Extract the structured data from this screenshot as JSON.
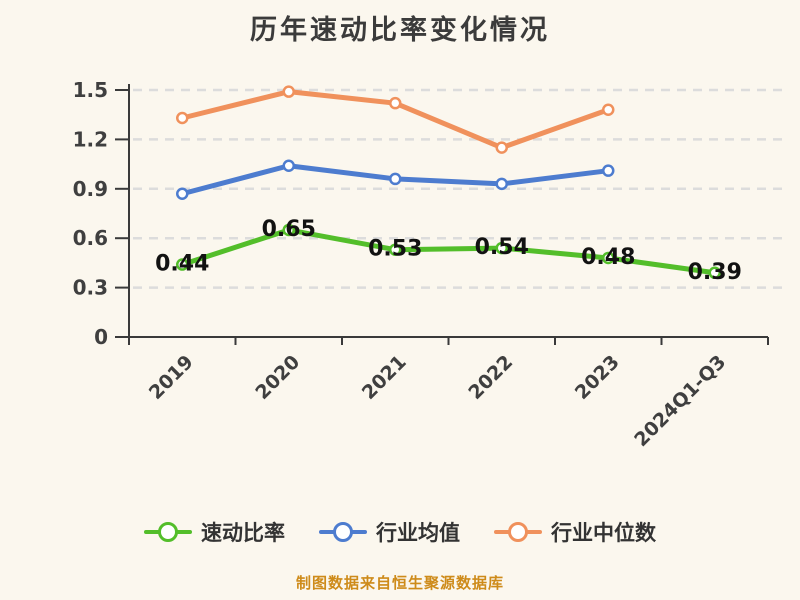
{
  "title": "历年速动比率变化情况",
  "footer": "制图数据来自恒生聚源数据库",
  "colors": {
    "background": "#FBF7EE",
    "title": "#3B3B3B",
    "axis": "#3A3A3A",
    "grid": "#DCDCDC",
    "tick_label": "#3F3F3F",
    "data_label": "#121212",
    "legend_text": "#333333",
    "footer": "#CE8B1A",
    "point_fill": "#FFFFFF"
  },
  "chart_data": {
    "type": "line",
    "categories": [
      "2019",
      "2020",
      "2021",
      "2022",
      "2023",
      "2024Q1-Q3"
    ],
    "series": [
      {
        "name": "速动比率",
        "color": "#53BE2A",
        "values": [
          0.44,
          0.65,
          0.53,
          0.54,
          0.48,
          0.39
        ],
        "show_labels": true
      },
      {
        "name": "行业均值",
        "color": "#4D7CCF",
        "values": [
          0.87,
          1.04,
          0.96,
          0.93,
          1.01
        ],
        "show_labels": false
      },
      {
        "name": "行业中位数",
        "color": "#F0915C",
        "values": [
          1.33,
          1.49,
          1.42,
          1.15,
          1.38
        ],
        "show_labels": false
      }
    ],
    "title": "历年速动比率变化情况",
    "xlabel": "",
    "ylabel": "",
    "ylim": [
      0,
      1.5
    ],
    "yticks": [
      0,
      0.3,
      0.6,
      0.9,
      1.2,
      1.5
    ],
    "grid": "dashed-horizontal",
    "legend_position": "bottom",
    "x_label_rotation": 45
  }
}
